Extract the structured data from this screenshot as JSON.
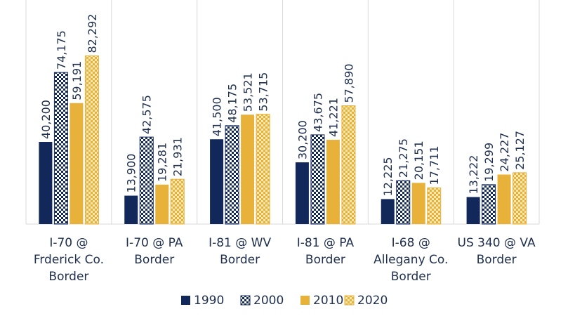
{
  "chart_data": {
    "type": "bar",
    "title": "",
    "xlabel": "",
    "ylabel": "",
    "ylim": [
      0,
      90000
    ],
    "grid": false,
    "legend_position": "bottom",
    "categories": [
      [
        "I-70 @",
        "Frderick Co.",
        "Border"
      ],
      [
        "I-70 @ PA",
        "Border"
      ],
      [
        "I-81 @ WV",
        "Border"
      ],
      [
        "I-81 @ PA",
        "Border"
      ],
      [
        "I-68 @",
        "Allegany Co.",
        "Border"
      ],
      [
        "US 340 @ VA",
        "Border"
      ]
    ],
    "series": [
      {
        "name": "1990",
        "color": "#13285a",
        "pattern": "solid",
        "values": [
          40200,
          13900,
          41500,
          30200,
          12225,
          13222
        ],
        "labels": [
          "40,200",
          "13,900",
          "41,500",
          "30,200",
          "12,225",
          "13,222"
        ]
      },
      {
        "name": "2000",
        "color": "#13285a",
        "pattern": "checker",
        "values": [
          74175,
          42575,
          48175,
          43675,
          21275,
          19299
        ],
        "labels": [
          "74,175",
          "42,575",
          "48,175",
          "43,675",
          "21,275",
          "19,299"
        ]
      },
      {
        "name": "2010",
        "color": "#e8b13a",
        "pattern": "solid",
        "values": [
          59191,
          19281,
          53521,
          41221,
          20151,
          24227
        ],
        "labels": [
          "59,191",
          "19,281",
          "53,521",
          "41,221",
          "20,151",
          "24,227"
        ]
      },
      {
        "name": "2020",
        "color": "#e8b13a",
        "pattern": "checker",
        "values": [
          82292,
          21931,
          53715,
          57890,
          17711,
          25127
        ],
        "labels": [
          "82,292",
          "21,931",
          "53,715",
          "57,890",
          "17,711",
          "25,127"
        ]
      }
    ]
  }
}
